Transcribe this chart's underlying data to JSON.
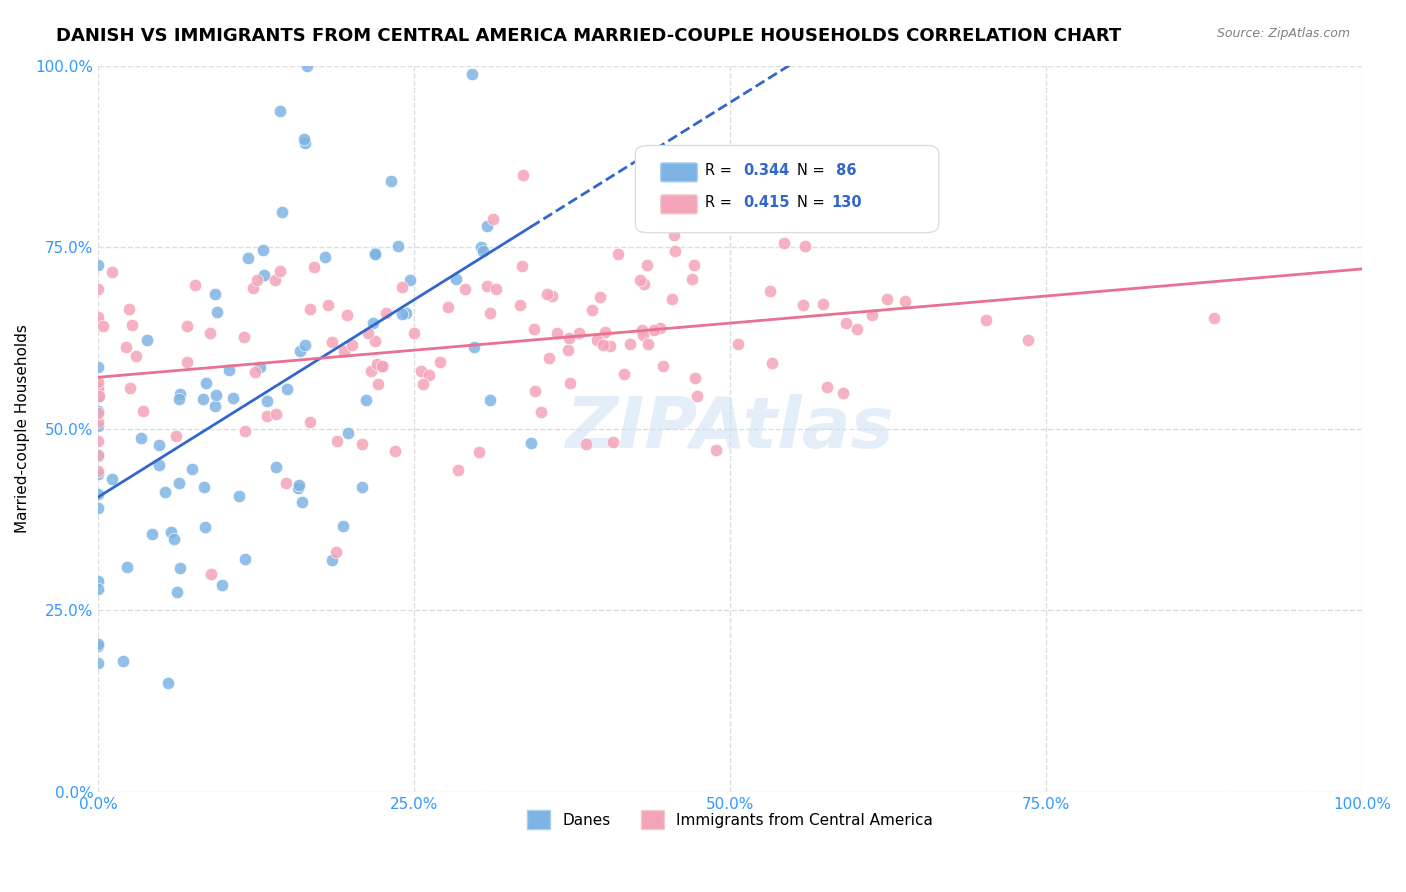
{
  "title": "DANISH VS IMMIGRANTS FROM CENTRAL AMERICA MARRIED-COUPLE HOUSEHOLDS CORRELATION CHART",
  "source": "Source: ZipAtlas.com",
  "ylabel": "Married-couple Households",
  "xlabel": "",
  "watermark": "ZIPAtlas",
  "legend_r_blue": "R = 0.344",
  "legend_n_blue": "N =  86",
  "legend_r_pink": "R = 0.415",
  "legend_n_pink": "N = 130",
  "blue_color": "#7EB4E3",
  "pink_color": "#F4A4B8",
  "blue_line_color": "#3366CC",
  "pink_line_color": "#E87090",
  "r_blue": 0.344,
  "r_pink": 0.415,
  "n_blue": 86,
  "n_pink": 130,
  "xlim": [
    0.0,
    1.0
  ],
  "ylim": [
    0.0,
    1.0
  ],
  "xticks": [
    0.0,
    0.25,
    0.5,
    0.75,
    1.0
  ],
  "yticks": [
    0.0,
    0.25,
    0.5,
    0.75,
    1.0
  ],
  "xticklabels": [
    "0.0%",
    "25.0%",
    "50.0%",
    "75.0%",
    "100.0%"
  ],
  "yticklabels": [
    "0.0%",
    "25.0%",
    "50.0%",
    "75.0%",
    "100.0%"
  ],
  "seed_blue": 42,
  "seed_pink": 99,
  "background_color": "#FFFFFF",
  "grid_color": "#DDDDDD",
  "title_fontsize": 13,
  "label_fontsize": 11,
  "tick_fontsize": 11,
  "marker_size": 80
}
